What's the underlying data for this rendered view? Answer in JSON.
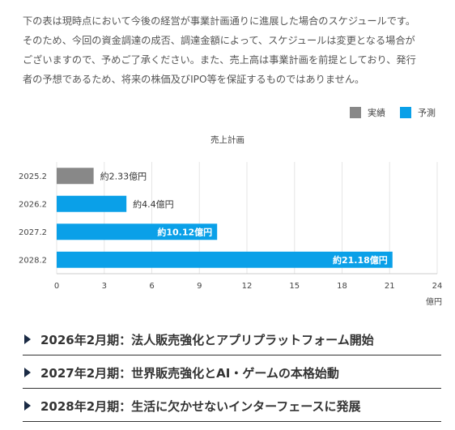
{
  "intro": {
    "lines": [
      "下の表は現時点において今後の経営が事業計画通りに進展した場合のスケジュールです。",
      "そのため、今回の資金調達の成否、調達金額によって、スケジュールは変更となる場合が",
      "ございますので、予めご了承ください。また、売上高は事業計画を前提としており、発行",
      "者の予想であるため、将来の株価及びIPO等を保証するものではありません。"
    ]
  },
  "legend": {
    "actual_label": "実績",
    "forecast_label": "予測",
    "actual_color": "#888888",
    "forecast_color": "#0aa0e8"
  },
  "chart_data": {
    "type": "bar",
    "orientation": "horizontal",
    "title": "売上計画",
    "xlabel": "億円",
    "ylabel": "",
    "xlim": [
      0,
      24
    ],
    "xticks": [
      0,
      3,
      6,
      9,
      12,
      15,
      18,
      21,
      24
    ],
    "categories": [
      "2025.2",
      "2026.2",
      "2027.2",
      "2028.2"
    ],
    "values": [
      2.33,
      4.4,
      10.12,
      21.18
    ],
    "kinds": [
      "actual",
      "forecast",
      "forecast",
      "forecast"
    ],
    "labels": [
      "約2.33億円",
      "約4.4億円",
      "約10.12億円",
      "約21.18億円"
    ],
    "label_inside": [
      false,
      false,
      true,
      true
    ],
    "grid": true,
    "legend_position": "top-right"
  },
  "milestones": [
    "2026年2月期：法人販売強化とアプリプラットフォーム開始",
    "2027年2月期：世界販売強化とAI・ゲームの本格始動",
    "2028年2月期：生活に欠かせないインターフェースに発展"
  ]
}
